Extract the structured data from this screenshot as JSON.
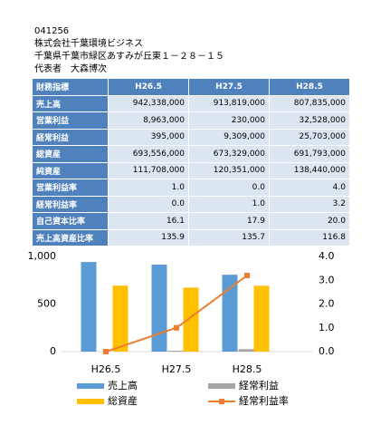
{
  "header": {
    "lines": [
      "041256",
      "株式会社千葉環境ビジネス",
      "千葉県千葉市緑区あすみが丘東１－２８－１５",
      "代表者　大森博次"
    ]
  },
  "table": {
    "header": [
      "財務指標",
      "H26.5",
      "H27.5",
      "H28.5"
    ],
    "rows": [
      [
        "売上高",
        "942,338,000",
        "913,819,000",
        "807,835,000"
      ],
      [
        "営業利益",
        "8,963,000",
        "230,000",
        "32,528,000"
      ],
      [
        "経常利益",
        "395,000",
        "9,309,000",
        "25,703,000"
      ],
      [
        "総資産",
        "693,556,000",
        "673,329,000",
        "691,793,000"
      ],
      [
        "純資産",
        "111,708,000",
        "120,351,000",
        "138,440,000"
      ],
      [
        "営業利益率",
        "1.0",
        "0.0",
        "4.0"
      ],
      [
        "経常利益率",
        "0.0",
        "1.0",
        "3.2"
      ],
      [
        "自己資本比率",
        "16.1",
        "17.9",
        "20.0"
      ],
      [
        "売上高資産比率",
        "135.9",
        "135.7",
        "116.8"
      ]
    ]
  },
  "chart_data": {
    "type": "bar",
    "categories": [
      "H26.5",
      "H27.5",
      "H28.5"
    ],
    "series": [
      {
        "name": "売上高",
        "color": "#5b9bd5",
        "values": [
          942,
          914,
          808
        ]
      },
      {
        "name": "経常利益",
        "color": "#a5a5a5",
        "values": [
          0.4,
          9.3,
          25.7
        ]
      },
      {
        "name": "総資産",
        "color": "#ffc000",
        "values": [
          694,
          673,
          692
        ]
      },
      {
        "name": "経常利益率",
        "color": "#ed7d31",
        "type": "line",
        "axis": "y2",
        "values": [
          0.0,
          1.0,
          3.2
        ]
      }
    ],
    "ylim": [
      0,
      1000
    ],
    "yticks": [
      0,
      500,
      {
        "value": 1000,
        "label": "1,000"
      }
    ],
    "y2lim": [
      0,
      4
    ],
    "y2ticks": [
      {
        "value": 0,
        "label": "0.0"
      },
      {
        "value": 1,
        "label": "1.0"
      },
      {
        "value": 2,
        "label": "2.0"
      },
      {
        "value": 3,
        "label": "3.0"
      },
      {
        "value": 4,
        "label": "4.0"
      }
    ]
  }
}
